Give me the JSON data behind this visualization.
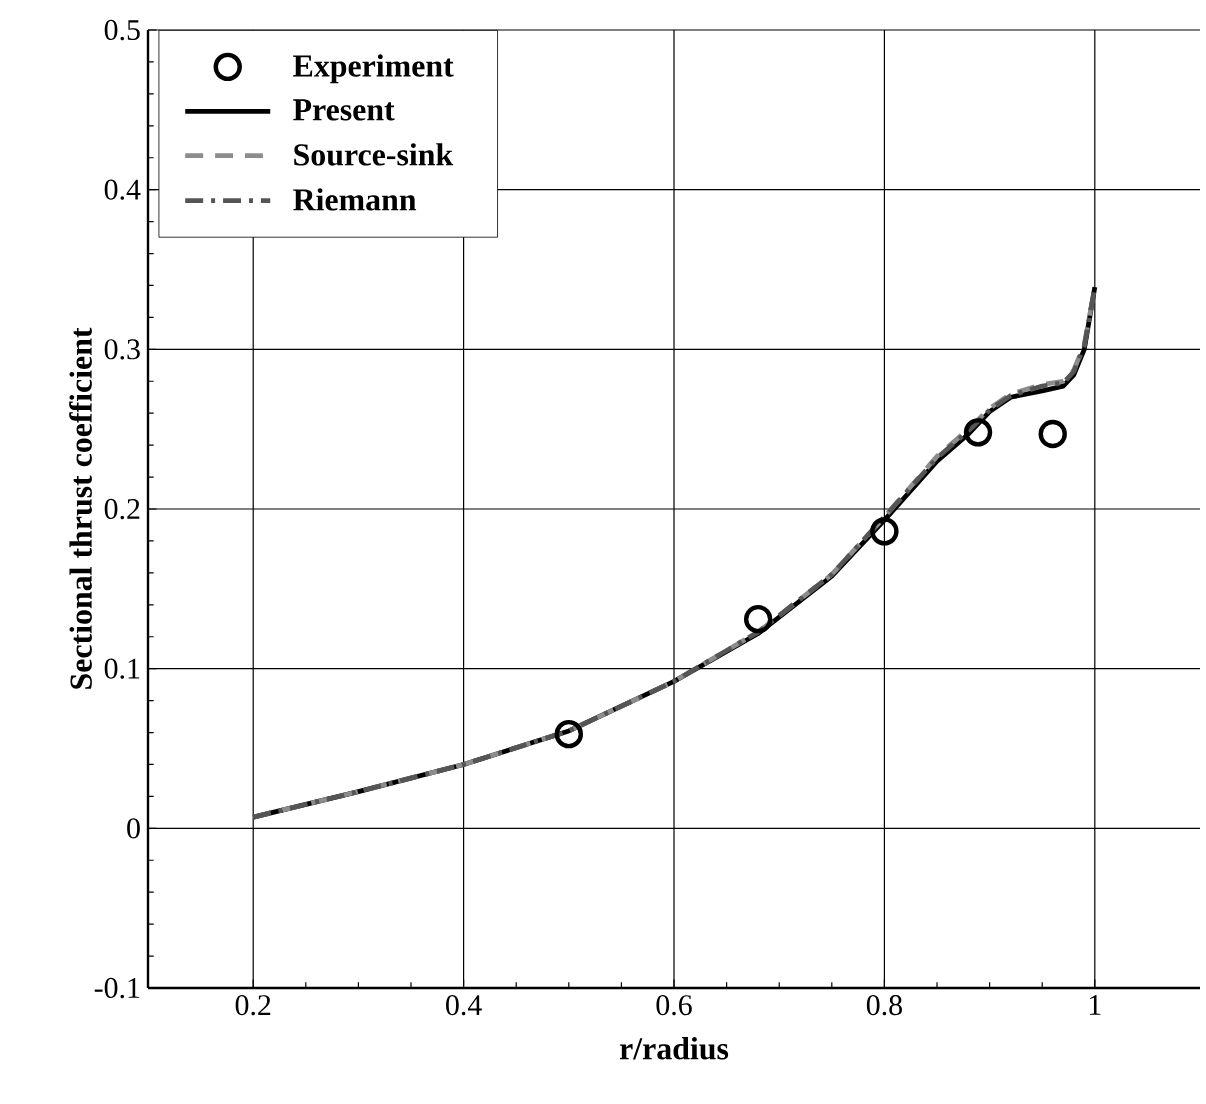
{
  "chart_data": {
    "type": "line",
    "xlabel": "r/radius",
    "ylabel": "Sectional thrust coefficient",
    "xlim": [
      0.1,
      1.1
    ],
    "ylim": [
      -0.1,
      0.5
    ],
    "xticks": [
      0.2,
      0.4,
      0.6,
      0.8,
      1
    ],
    "yticks": [
      -0.1,
      0,
      0.1,
      0.2,
      0.3,
      0.4,
      0.5
    ],
    "grid": true,
    "legend": "top left",
    "series": [
      {
        "name": "Experiment",
        "type": "scatter",
        "marker": "circle",
        "color": "#000000",
        "x": [
          0.5,
          0.68,
          0.8,
          0.889,
          0.96
        ],
        "values": [
          0.059,
          0.131,
          0.186,
          0.248,
          0.247
        ]
      },
      {
        "name": "Present",
        "line_style": "solid",
        "color": "#000000",
        "x": [
          0.2,
          0.3,
          0.4,
          0.5,
          0.6,
          0.68,
          0.75,
          0.8,
          0.85,
          0.88,
          0.9,
          0.92,
          0.95,
          0.97,
          0.98,
          0.99,
          1.0
        ],
        "values": [
          0.007,
          0.023,
          0.04,
          0.061,
          0.092,
          0.122,
          0.158,
          0.193,
          0.23,
          0.247,
          0.261,
          0.27,
          0.274,
          0.277,
          0.284,
          0.3,
          0.339
        ]
      },
      {
        "name": "Source-sink",
        "line_style": "dashed",
        "color": "#8c8c8c",
        "x": [
          0.2,
          0.3,
          0.4,
          0.5,
          0.6,
          0.68,
          0.75,
          0.8,
          0.85,
          0.88,
          0.9,
          0.92,
          0.95,
          0.97,
          0.98,
          0.99,
          1.0
        ],
        "values": [
          0.007,
          0.023,
          0.04,
          0.061,
          0.092,
          0.123,
          0.159,
          0.195,
          0.233,
          0.25,
          0.263,
          0.272,
          0.278,
          0.28,
          0.287,
          0.303,
          0.339
        ]
      },
      {
        "name": "Riemann",
        "line_style": "dashdot",
        "color": "#555555",
        "x": [
          0.2,
          0.3,
          0.4,
          0.5,
          0.6,
          0.68,
          0.75,
          0.8,
          0.85,
          0.88,
          0.9,
          0.92,
          0.95,
          0.97,
          0.98,
          0.99,
          1.0
        ],
        "values": [
          0.007,
          0.023,
          0.04,
          0.061,
          0.092,
          0.123,
          0.159,
          0.195,
          0.232,
          0.249,
          0.262,
          0.271,
          0.277,
          0.279,
          0.286,
          0.302,
          0.339
        ]
      }
    ]
  }
}
